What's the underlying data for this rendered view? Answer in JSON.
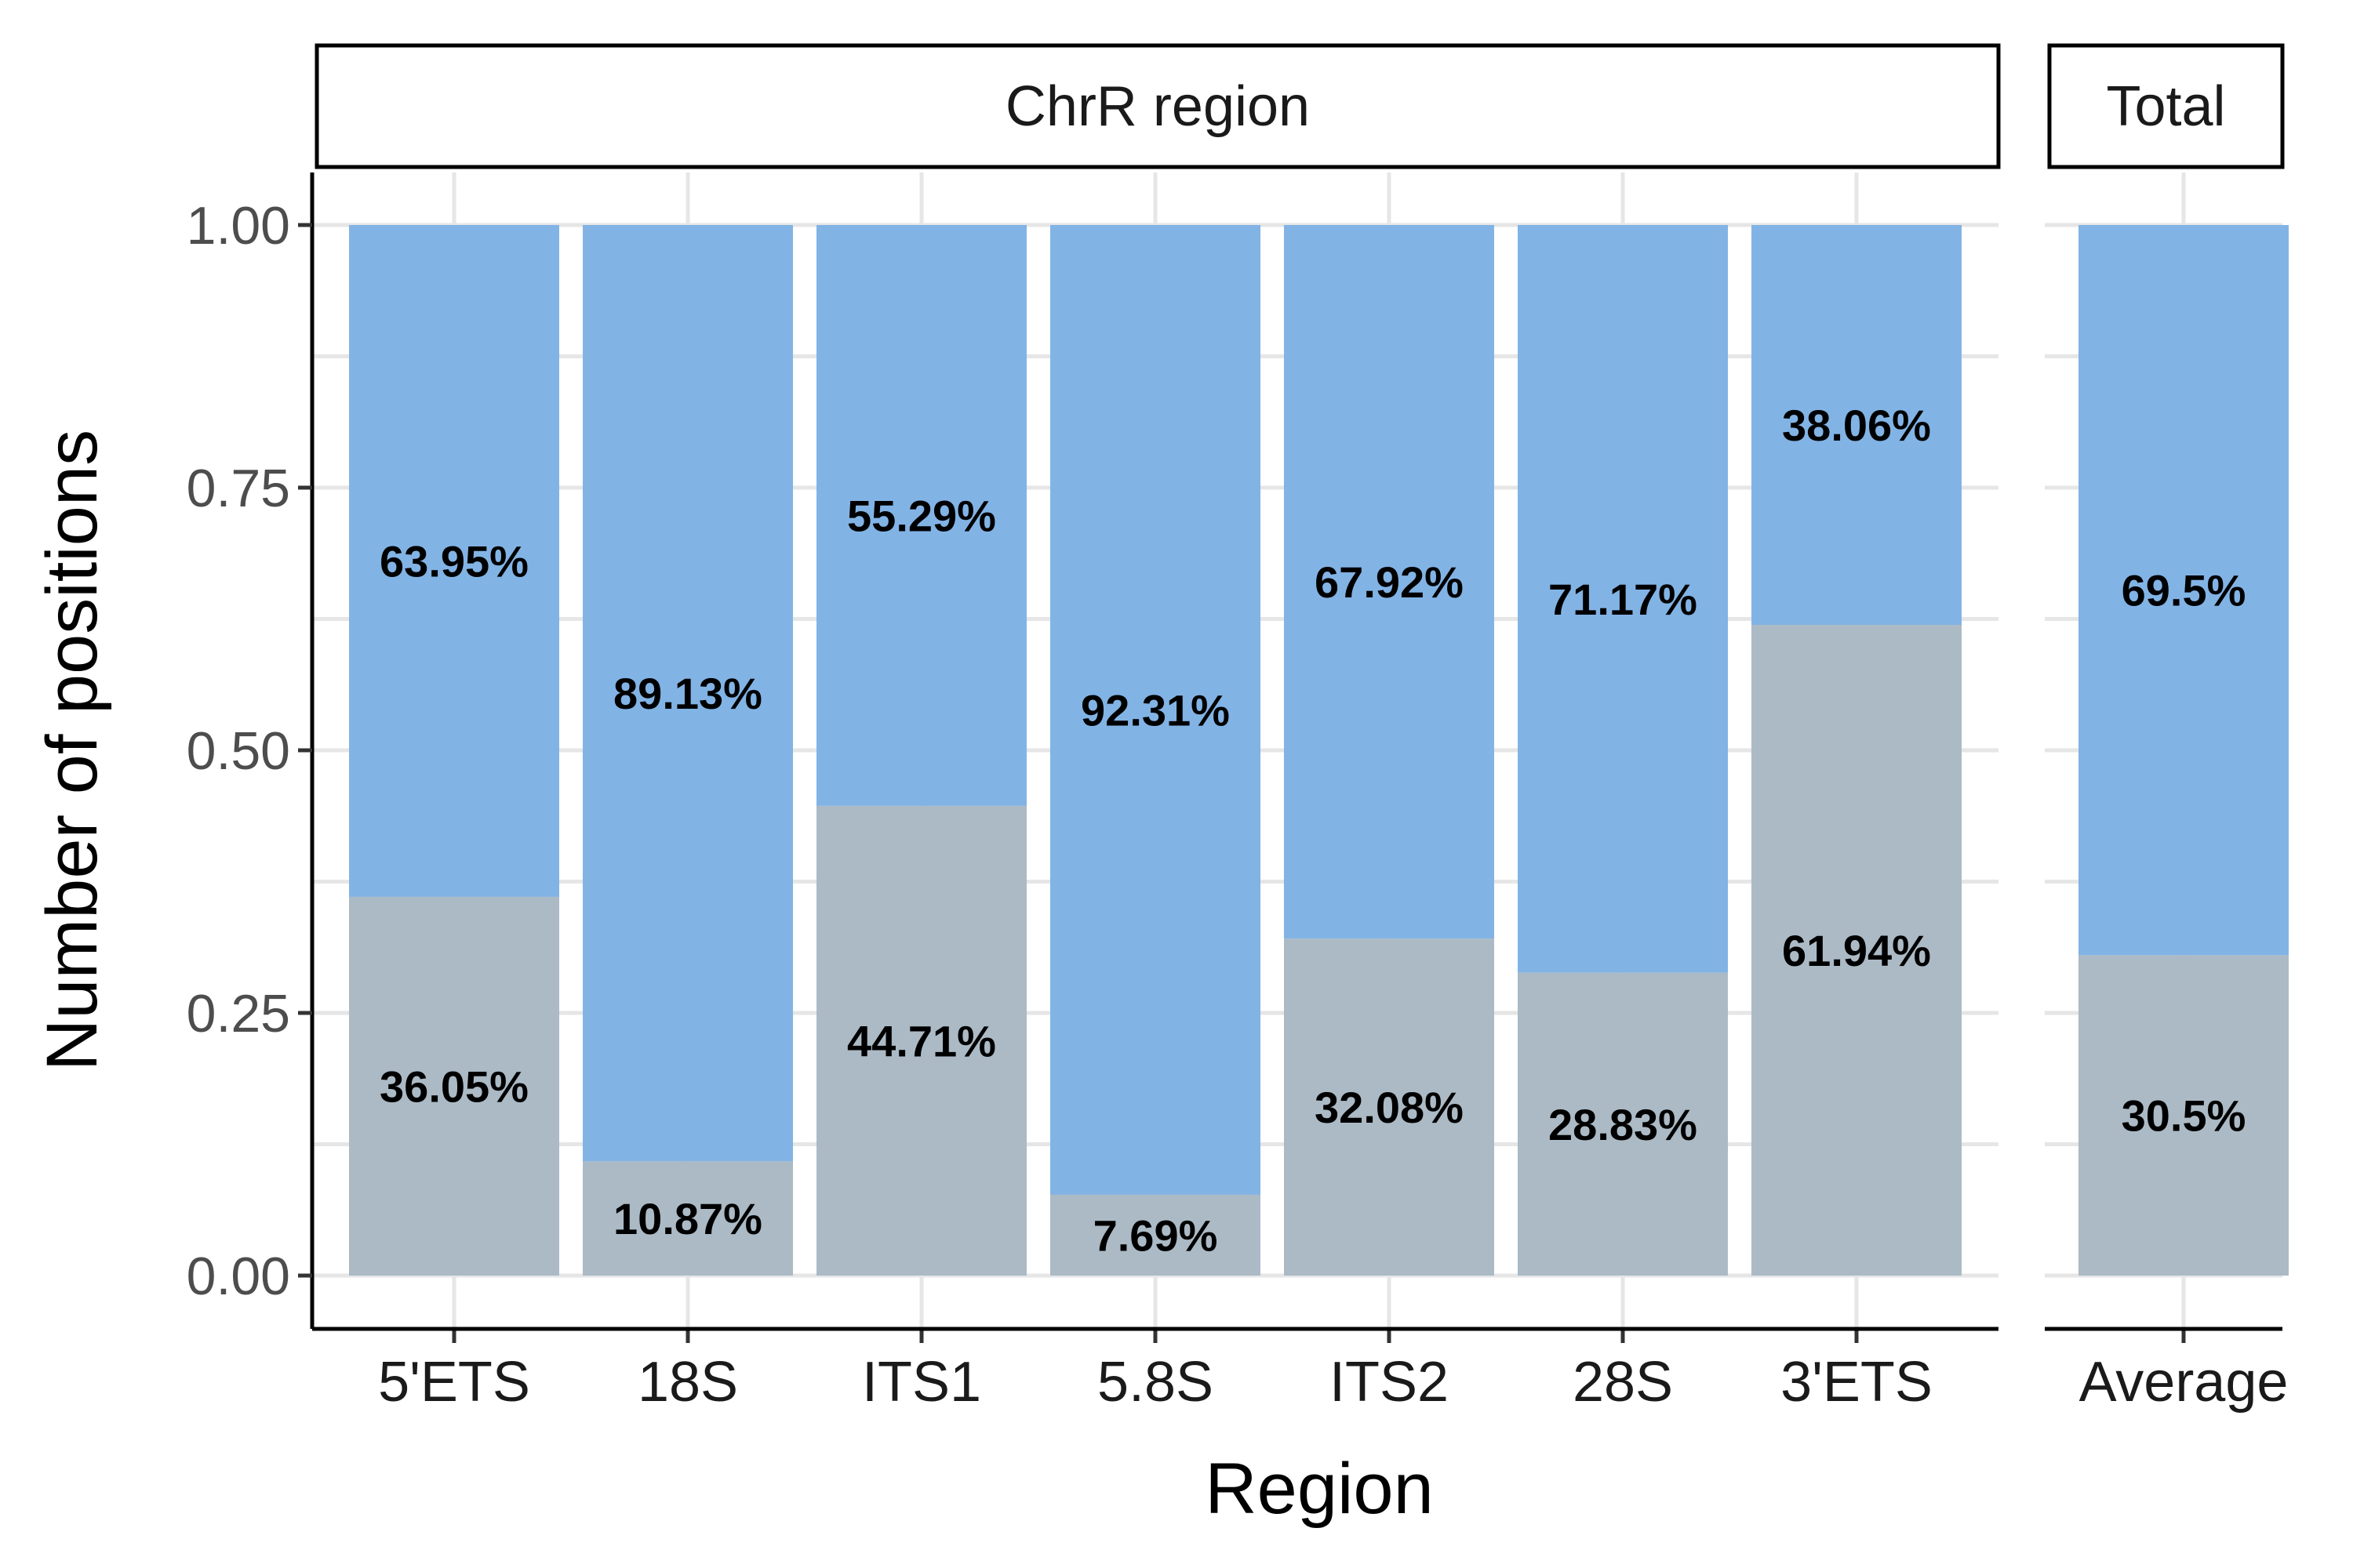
{
  "chart_data": {
    "type": "bar",
    "stacked": true,
    "xlabel": "Region",
    "ylabel": "Number of positions",
    "ylim": [
      0,
      1
    ],
    "y_ticks": [
      "0.00",
      "0.25",
      "0.50",
      "0.75",
      "1.00"
    ],
    "grid": true,
    "legend": "none",
    "colors": {
      "top": "#82b3e5",
      "bottom": "#abbac5"
    },
    "facets": [
      {
        "title": "ChrR region",
        "categories": [
          "5'ETS",
          "18S",
          "ITS1",
          "5.8S",
          "ITS2",
          "28S",
          "3'ETS"
        ],
        "bottom_values": [
          0.3605,
          0.1087,
          0.4471,
          0.0769,
          0.3208,
          0.2883,
          0.6194
        ],
        "top_values": [
          0.6395,
          0.8913,
          0.5529,
          0.9231,
          0.6792,
          0.7117,
          0.3806
        ],
        "bottom_labels": [
          "36.05%",
          "10.87%",
          "44.71%",
          "7.69%",
          "32.08%",
          "28.83%",
          "61.94%"
        ],
        "top_labels": [
          "63.95%",
          "89.13%",
          "55.29%",
          "92.31%",
          "67.92%",
          "71.17%",
          "38.06%"
        ]
      },
      {
        "title": "Total",
        "categories": [
          "Average"
        ],
        "bottom_values": [
          0.305
        ],
        "top_values": [
          0.695
        ],
        "bottom_labels": [
          "30.5%"
        ],
        "top_labels": [
          "69.5%"
        ]
      }
    ]
  }
}
